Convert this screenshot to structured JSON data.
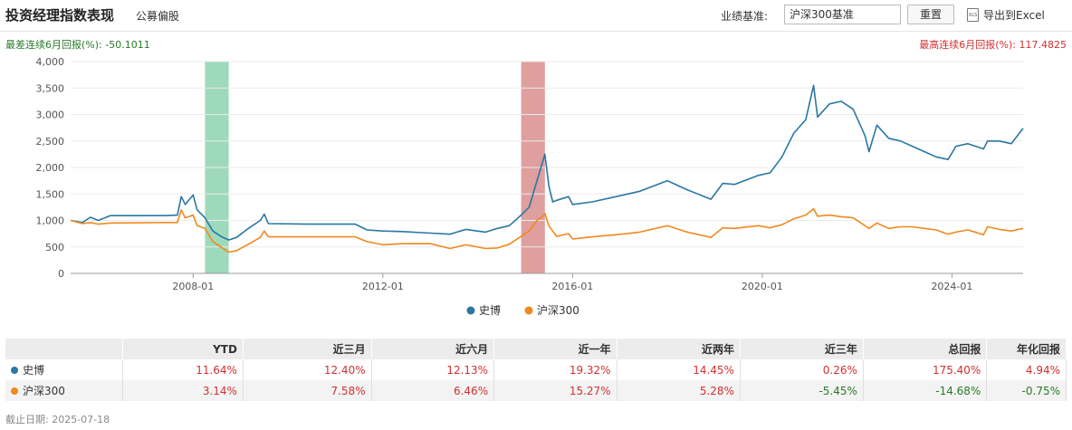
{
  "header": {
    "title": "投资经理指数表现",
    "subtitle": "公募偏股",
    "benchmark_label": "业绩基准:",
    "benchmark_value": "沪深300基准",
    "reset_label": "重置",
    "export_label": "导出到Excel",
    "export_icon": "xls-icon"
  },
  "extremes": {
    "worst": "最差连续6月回报(%): -50.1011",
    "best": "最高连续6月回报(%): 117.4825"
  },
  "colors": {
    "manager": "#2a77a4",
    "index": "#f0891f",
    "worst_band": "#7fcca4",
    "best_band": "#d47f7f",
    "positive": "#d23030",
    "negative": "#2a7a2a"
  },
  "chart_data": {
    "type": "line",
    "x_range": [
      "2005-06",
      "2025-07"
    ],
    "ylim": [
      0,
      4000
    ],
    "y_ticks": [
      "0",
      "500",
      "1,000",
      "1,500",
      "2,000",
      "2,500",
      "3,000",
      "3,500",
      "4,000"
    ],
    "x_tick_labels": [
      "2008-01",
      "2012-01",
      "2016-01",
      "2020-01",
      "2024-01"
    ],
    "grid": true,
    "legend": "bottom-center",
    "shaded_regions": [
      {
        "from": "2008-04",
        "to": "2008-10",
        "kind": "worst"
      },
      {
        "from": "2014-12",
        "to": "2015-06",
        "kind": "best"
      }
    ],
    "series": [
      {
        "name": "史博",
        "color": "#2a77a4",
        "points": [
          [
            "2005-06",
            1000
          ],
          [
            "2005-09",
            960
          ],
          [
            "2005-11",
            1060
          ],
          [
            "2006-01",
            1000
          ],
          [
            "2006-04",
            1090
          ],
          [
            "2007-06",
            1090
          ],
          [
            "2007-09",
            1100
          ],
          [
            "2007-10",
            1450
          ],
          [
            "2007-11",
            1300
          ],
          [
            "2008-01",
            1480
          ],
          [
            "2008-02",
            1200
          ],
          [
            "2008-04",
            1050
          ],
          [
            "2008-06",
            800
          ],
          [
            "2008-08",
            700
          ],
          [
            "2008-10",
            630
          ],
          [
            "2008-12",
            680
          ],
          [
            "2009-03",
            850
          ],
          [
            "2009-06",
            1000
          ],
          [
            "2009-07",
            1120
          ],
          [
            "2009-08",
            940
          ],
          [
            "2010-06",
            930
          ],
          [
            "2011-06",
            930
          ],
          [
            "2011-09",
            820
          ],
          [
            "2012-01",
            800
          ],
          [
            "2012-06",
            790
          ],
          [
            "2013-01",
            760
          ],
          [
            "2013-06",
            740
          ],
          [
            "2013-10",
            830
          ],
          [
            "2014-03",
            780
          ],
          [
            "2014-06",
            850
          ],
          [
            "2014-09",
            900
          ],
          [
            "2014-12",
            1100
          ],
          [
            "2015-02",
            1250
          ],
          [
            "2015-04",
            1750
          ],
          [
            "2015-05",
            2000
          ],
          [
            "2015-06",
            2250
          ],
          [
            "2015-07",
            1650
          ],
          [
            "2015-08",
            1350
          ],
          [
            "2015-09",
            1380
          ],
          [
            "2015-12",
            1450
          ],
          [
            "2016-01",
            1300
          ],
          [
            "2016-06",
            1350
          ],
          [
            "2016-12",
            1450
          ],
          [
            "2017-06",
            1550
          ],
          [
            "2018-01",
            1750
          ],
          [
            "2018-06",
            1580
          ],
          [
            "2018-12",
            1400
          ],
          [
            "2019-03",
            1700
          ],
          [
            "2019-06",
            1680
          ],
          [
            "2019-12",
            1850
          ],
          [
            "2020-03",
            1900
          ],
          [
            "2020-06",
            2200
          ],
          [
            "2020-09",
            2650
          ],
          [
            "2020-12",
            2900
          ],
          [
            "2021-02",
            3550
          ],
          [
            "2021-03",
            2950
          ],
          [
            "2021-06",
            3200
          ],
          [
            "2021-09",
            3250
          ],
          [
            "2021-12",
            3100
          ],
          [
            "2022-03",
            2600
          ],
          [
            "2022-04",
            2300
          ],
          [
            "2022-06",
            2800
          ],
          [
            "2022-09",
            2550
          ],
          [
            "2022-12",
            2500
          ],
          [
            "2023-03",
            2400
          ],
          [
            "2023-06",
            2300
          ],
          [
            "2023-09",
            2200
          ],
          [
            "2023-12",
            2150
          ],
          [
            "2024-02",
            2400
          ],
          [
            "2024-05",
            2450
          ],
          [
            "2024-09",
            2350
          ],
          [
            "2024-10",
            2500
          ],
          [
            "2025-01",
            2500
          ],
          [
            "2025-04",
            2450
          ],
          [
            "2025-07",
            2740
          ]
        ]
      },
      {
        "name": "沪深300",
        "color": "#f0891f",
        "points": [
          [
            "2005-06",
            1000
          ],
          [
            "2005-09",
            940
          ],
          [
            "2005-11",
            960
          ],
          [
            "2006-01",
            930
          ],
          [
            "2006-04",
            950
          ],
          [
            "2007-06",
            960
          ],
          [
            "2007-09",
            960
          ],
          [
            "2007-10",
            1200
          ],
          [
            "2007-11",
            1050
          ],
          [
            "2008-01",
            1100
          ],
          [
            "2008-02",
            900
          ],
          [
            "2008-04",
            850
          ],
          [
            "2008-06",
            600
          ],
          [
            "2008-08",
            500
          ],
          [
            "2008-10",
            400
          ],
          [
            "2008-12",
            430
          ],
          [
            "2009-03",
            550
          ],
          [
            "2009-06",
            680
          ],
          [
            "2009-07",
            800
          ],
          [
            "2009-08",
            690
          ],
          [
            "2010-06",
            690
          ],
          [
            "2011-06",
            690
          ],
          [
            "2011-09",
            600
          ],
          [
            "2012-01",
            540
          ],
          [
            "2012-06",
            560
          ],
          [
            "2013-01",
            560
          ],
          [
            "2013-06",
            470
          ],
          [
            "2013-10",
            540
          ],
          [
            "2014-03",
            470
          ],
          [
            "2014-06",
            480
          ],
          [
            "2014-09",
            550
          ],
          [
            "2014-12",
            700
          ],
          [
            "2015-02",
            800
          ],
          [
            "2015-04",
            1000
          ],
          [
            "2015-05",
            1050
          ],
          [
            "2015-06",
            1130
          ],
          [
            "2015-07",
            900
          ],
          [
            "2015-08",
            800
          ],
          [
            "2015-09",
            700
          ],
          [
            "2015-12",
            750
          ],
          [
            "2016-01",
            650
          ],
          [
            "2016-06",
            690
          ],
          [
            "2016-12",
            730
          ],
          [
            "2017-06",
            780
          ],
          [
            "2018-01",
            900
          ],
          [
            "2018-06",
            780
          ],
          [
            "2018-12",
            680
          ],
          [
            "2019-03",
            860
          ],
          [
            "2019-06",
            850
          ],
          [
            "2019-12",
            900
          ],
          [
            "2020-03",
            860
          ],
          [
            "2020-06",
            920
          ],
          [
            "2020-09",
            1030
          ],
          [
            "2020-12",
            1100
          ],
          [
            "2021-02",
            1220
          ],
          [
            "2021-03",
            1080
          ],
          [
            "2021-06",
            1100
          ],
          [
            "2021-09",
            1070
          ],
          [
            "2021-12",
            1050
          ],
          [
            "2022-03",
            900
          ],
          [
            "2022-04",
            850
          ],
          [
            "2022-06",
            950
          ],
          [
            "2022-09",
            850
          ],
          [
            "2022-12",
            880
          ],
          [
            "2023-03",
            880
          ],
          [
            "2023-06",
            850
          ],
          [
            "2023-09",
            820
          ],
          [
            "2023-12",
            740
          ],
          [
            "2024-02",
            780
          ],
          [
            "2024-05",
            820
          ],
          [
            "2024-09",
            730
          ],
          [
            "2024-10",
            880
          ],
          [
            "2025-01",
            830
          ],
          [
            "2025-04",
            800
          ],
          [
            "2025-07",
            850
          ]
        ]
      }
    ]
  },
  "table": {
    "headers": [
      "",
      "YTD",
      "近三月",
      "近六月",
      "近一年",
      "近两年",
      "近三年",
      "总回报",
      "年化回报"
    ],
    "rows": [
      {
        "name": "史博",
        "color": "#2a77a4",
        "values": [
          "11.64%",
          "12.40%",
          "12.13%",
          "19.32%",
          "14.45%",
          "0.26%",
          "175.40%",
          "4.94%"
        ]
      },
      {
        "name": "沪深300",
        "color": "#f0891f",
        "values": [
          "3.14%",
          "7.58%",
          "6.46%",
          "15.27%",
          "5.28%",
          "-5.45%",
          "-14.68%",
          "-0.75%"
        ]
      }
    ]
  },
  "as_of": "截止日期: 2025-07-18"
}
